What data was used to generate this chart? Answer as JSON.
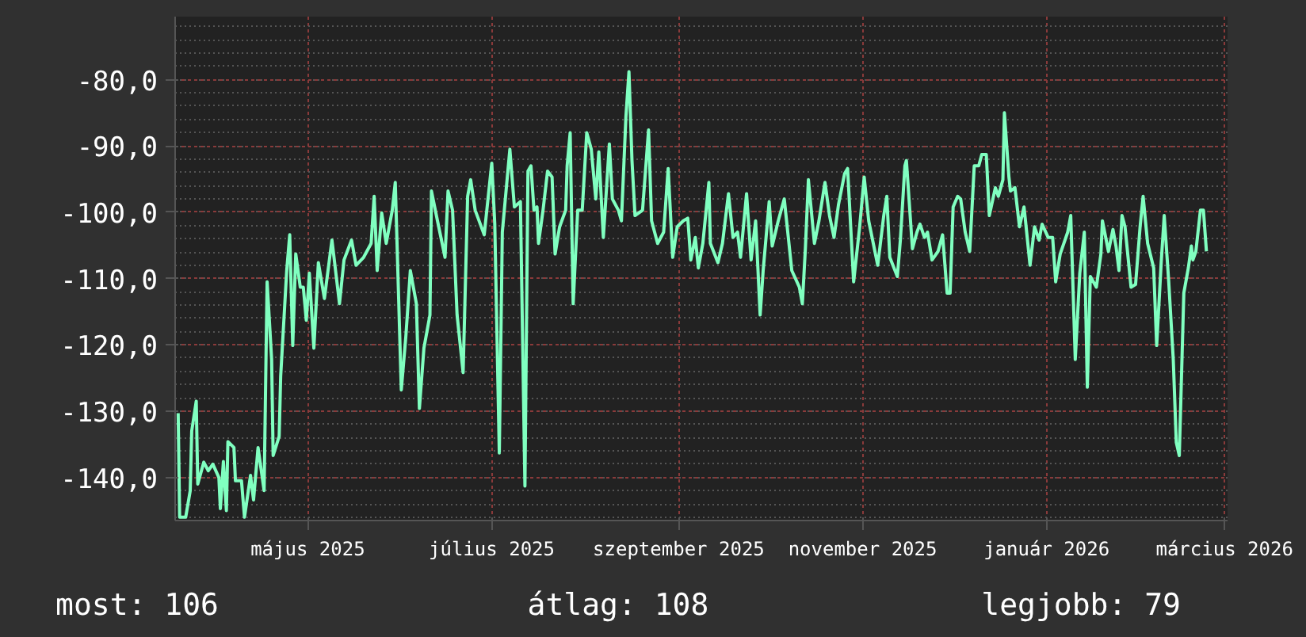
{
  "chart_data": {
    "type": "line",
    "line_style": "solid",
    "marker": "none",
    "grid": true,
    "xlim": [
      "2025-03-18",
      "2026-03-02"
    ],
    "xticks": [
      {
        "value": "2025-05-01",
        "label": "május 2025"
      },
      {
        "value": "2025-07-01",
        "label": "július 2025"
      },
      {
        "value": "2025-09-01",
        "label": "szeptember 2025"
      },
      {
        "value": "2025-11-01",
        "label": "november 2025"
      },
      {
        "value": "2026-01-01",
        "label": "január 2026"
      },
      {
        "value": "2026-03-01",
        "label": "március 2026"
      }
    ],
    "ylim": [
      -146.5,
      -70.5
    ],
    "yticks": [
      {
        "value": -140,
        "label": "-140,0"
      },
      {
        "value": -130,
        "label": "-130,0"
      },
      {
        "value": -120,
        "label": "-120,0"
      },
      {
        "value": -110,
        "label": "-110,0"
      },
      {
        "value": -100,
        "label": "-100,0"
      },
      {
        "value": -90,
        "label": "-90,0"
      },
      {
        "value": -80,
        "label": "-80,0"
      }
    ],
    "annotations": [
      "most: 106",
      "átlag: 108",
      "legjobb: 79"
    ],
    "series": [
      {
        "color": "#80ffc0",
        "x": [
          "2025-03-19",
          "2025-03-19T12:00",
          "2025-03-21T12:00",
          "2025-03-23",
          "2025-03-23T12:00",
          "2025-03-25",
          "2025-03-25T12:00",
          "2025-03-27T12:00",
          "2025-03-29",
          "2025-03-30T12:00",
          "2025-04-01T12:00",
          "2025-04-02",
          "2025-04-03",
          "2025-04-04",
          "2025-04-04T12:00",
          "2025-04-06T12:00",
          "2025-04-07",
          "2025-04-09",
          "2025-04-10",
          "2025-04-12",
          "2025-04-13",
          "2025-04-14T12:00",
          "2025-04-16T12:00",
          "2025-04-17T12:00",
          "2025-04-19",
          "2025-04-19T12:00",
          "2025-04-21T12:00",
          "2025-04-22",
          "2025-04-24",
          "2025-04-25",
          "2025-04-26",
          "2025-04-27",
          "2025-04-28T12:00",
          "2025-04-29T12:00",
          "2025-04-30T12:00",
          "2025-05-01T12:00",
          "2025-05-03",
          "2025-05-04T12:00",
          "2025-05-06T12:00",
          "2025-05-09",
          "2025-05-11T12:00",
          "2025-05-13",
          "2025-05-15T12:00",
          "2025-05-17",
          "2025-05-19T12:00",
          "2025-05-22",
          "2025-05-23",
          "2025-05-24",
          "2025-05-25T12:00",
          "2025-05-27",
          "2025-05-29",
          "2025-05-30",
          "2025-06-01",
          "2025-06-02T12:00",
          "2025-06-04",
          "2025-06-06",
          "2025-06-07",
          "2025-06-08T12:00",
          "2025-06-10T12:00",
          "2025-06-11",
          "2025-06-13",
          "2025-06-15T12:00",
          "2025-06-16T12:00",
          "2025-06-18",
          "2025-06-19T12:00",
          "2025-06-21T12:00",
          "2025-06-23",
          "2025-06-24",
          "2025-06-25T12:00",
          "2025-06-28T12:00",
          "2025-07-01",
          "2025-07-02",
          "2025-07-03T12:00",
          "2025-07-04T12:00",
          "2025-07-07",
          "2025-07-08T12:00",
          "2025-07-10T12:00",
          "2025-07-12",
          "2025-07-13",
          "2025-07-14",
          "2025-07-15",
          "2025-07-16",
          "2025-07-16T12:00",
          "2025-07-18",
          "2025-07-19T12:00",
          "2025-07-21",
          "2025-07-22",
          "2025-07-23T12:00",
          "2025-07-25T12:00",
          "2025-07-26",
          "2025-07-27",
          "2025-07-28",
          "2025-07-29T12:00",
          "2025-07-31",
          "2025-08-01T12:00",
          "2025-08-03",
          "2025-08-04T12:00",
          "2025-08-05T12:00",
          "2025-08-07",
          "2025-08-09",
          "2025-08-10",
          "2025-08-12",
          "2025-08-13",
          "2025-08-14T12:00",
          "2025-08-15T12:00",
          "2025-08-16T12:00",
          "2025-08-17T12:00",
          "2025-08-20",
          "2025-08-22",
          "2025-08-23",
          "2025-08-25",
          "2025-08-27",
          "2025-08-28T12:00",
          "2025-08-30",
          "2025-08-31T12:00",
          "2025-09-02T12:00",
          "2025-09-04",
          "2025-09-05",
          "2025-09-06T12:00",
          "2025-09-07T12:00",
          "2025-09-09",
          "2025-09-11",
          "2025-09-11T12:00",
          "2025-09-14",
          "2025-09-15T12:00",
          "2025-09-17T12:00",
          "2025-09-19",
          "2025-09-20T12:00",
          "2025-09-21T12:00",
          "2025-09-23T12:00",
          "2025-09-25",
          "2025-09-26T12:00",
          "2025-09-28",
          "2025-09-29",
          "2025-10-01",
          "2025-10-02",
          "2025-10-04",
          "2025-10-06",
          "2025-10-08T12:00",
          "2025-10-11",
          "2025-10-12",
          "2025-10-13",
          "2025-10-14",
          "2025-10-16",
          "2025-10-17T12:00",
          "2025-10-19T12:00",
          "2025-10-21",
          "2025-10-22T12:00",
          "2025-10-24",
          "2025-10-26",
          "2025-10-27",
          "2025-10-29",
          "2025-10-31",
          "2025-11-01T12:00",
          "2025-11-03",
          "2025-11-06",
          "2025-11-08",
          "2025-11-09",
          "2025-11-10",
          "2025-11-12T12:00",
          "2025-11-13T12:00",
          "2025-11-15",
          "2025-11-15T12:00",
          "2025-11-17T12:00",
          "2025-11-19",
          "2025-11-20",
          "2025-11-21T12:00",
          "2025-11-22T12:00",
          "2025-11-24",
          "2025-11-26",
          "2025-11-27T12:00",
          "2025-11-29",
          "2025-11-30",
          "2025-12-01",
          "2025-12-02T12:00",
          "2025-12-03T12:00",
          "2025-12-05",
          "2025-12-06T12:00",
          "2025-12-08",
          "2025-12-09T12:00",
          "2025-12-10T12:00",
          "2025-12-12",
          "2025-12-13",
          "2025-12-15",
          "2025-12-16",
          "2025-12-17T12:00",
          "2025-12-18",
          "2025-12-19T12:00",
          "2025-12-20",
          "2025-12-21T12:00",
          "2025-12-23",
          "2025-12-24T12:00",
          "2025-12-25",
          "2025-12-26T12:00",
          "2025-12-28",
          "2025-12-29T12:00",
          "2025-12-30T12:00",
          "2026-01-01T12:00",
          "2026-01-03",
          "2026-01-04",
          "2026-01-05T12:00",
          "2026-01-08",
          "2026-01-09",
          "2026-01-10T12:00",
          "2026-01-12",
          "2026-01-13T12:00",
          "2026-01-14T12:00",
          "2026-01-15T12:00",
          "2026-01-17T12:00",
          "2026-01-19",
          "2026-01-19T12:00",
          "2026-01-21T12:00",
          "2026-01-23",
          "2026-01-24",
          "2026-01-25",
          "2026-01-26",
          "2026-01-27",
          "2026-01-29",
          "2026-01-30T12:00",
          "2026-02-01",
          "2026-02-02",
          "2026-02-03T12:00",
          "2026-02-05T12:00",
          "2026-02-06T12:00",
          "2026-02-08",
          "2026-02-09",
          "2026-02-10T12:00",
          "2026-02-12",
          "2026-02-13",
          "2026-02-14",
          "2026-02-15T12:00",
          "2026-02-17",
          "2026-02-18",
          "2026-02-18T12:00",
          "2026-02-19T12:00",
          "2026-02-21",
          "2026-02-22",
          "2026-02-23"
        ],
        "values": [
          -130.3,
          -146,
          -146,
          -142,
          -133,
          -128.5,
          -141,
          -137.7,
          -139,
          -138,
          -140,
          -144.7,
          -137.6,
          -145,
          -134.6,
          -135.5,
          -140.5,
          -140.5,
          -146,
          -139.7,
          -143.4,
          -135.5,
          -142,
          -110.5,
          -122.2,
          -136.7,
          -133.8,
          -124.7,
          -108.8,
          -103.4,
          -120.1,
          -106.3,
          -111.3,
          -111.3,
          -116.3,
          -109.2,
          -120.5,
          -107.6,
          -113,
          -104.2,
          -113.8,
          -107.2,
          -104.2,
          -108,
          -106.8,
          -104.7,
          -97.6,
          -108.8,
          -100.1,
          -104.7,
          -99.7,
          -95.5,
          -126.8,
          -118.8,
          -108.8,
          -113.8,
          -129.6,
          -120.5,
          -115.5,
          -96.8,
          -101.3,
          -106.8,
          -96.8,
          -99.7,
          -115.5,
          -124.2,
          -97.6,
          -95.1,
          -99.7,
          -103.4,
          -92.6,
          -101.8,
          -136.3,
          -103,
          -90.5,
          -99.2,
          -98.4,
          -141.3,
          -93.8,
          -93,
          -99.7,
          -99.2,
          -104.7,
          -99.7,
          -93.8,
          -94.7,
          -106.3,
          -102.2,
          -99.7,
          -93,
          -88,
          -113.8,
          -99.7,
          -99.7,
          -88,
          -90.5,
          -98,
          -90.9,
          -103.8,
          -89.7,
          -98,
          -99.7,
          -101.3,
          -85.5,
          -78.8,
          -92.2,
          -100.5,
          -99.7,
          -87.6,
          -101.3,
          -104.7,
          -103,
          -93.4,
          -106.8,
          -102.2,
          -101.3,
          -100.9,
          -107.2,
          -103.8,
          -108.4,
          -104.7,
          -95.5,
          -104.7,
          -107.6,
          -104.7,
          -97.2,
          -103.8,
          -103,
          -106.8,
          -97.2,
          -107.2,
          -101.3,
          -115.5,
          -108.8,
          -98.4,
          -105.1,
          -101.3,
          -98,
          -108.8,
          -111.3,
          -113.8,
          -105.5,
          -95.1,
          -104.7,
          -101.3,
          -95.5,
          -100.5,
          -103.8,
          -98.8,
          -94.2,
          -93.4,
          -110.5,
          -102.2,
          -94.7,
          -101.3,
          -108,
          -100.5,
          -97.6,
          -106.8,
          -109.7,
          -104.2,
          -93,
          -92.2,
          -105.5,
          -103,
          -101.8,
          -103.8,
          -103,
          -107.2,
          -105.9,
          -103.4,
          -112.2,
          -112.2,
          -99.2,
          -97.6,
          -98,
          -103,
          -105.9,
          -93,
          -93,
          -91.3,
          -91.3,
          -100.5,
          -96.3,
          -97.6,
          -95.1,
          -85,
          -94.7,
          -96.8,
          -96.3,
          -102.2,
          -99.2,
          -101.3,
          -108,
          -102.2,
          -104.2,
          -101.8,
          -103.8,
          -103.8,
          -110.5,
          -106.3,
          -103,
          -100.5,
          -122.2,
          -109.2,
          -103,
          -126.4,
          -109.7,
          -111.3,
          -106.3,
          -101.3,
          -105.9,
          -102.6,
          -105.1,
          -108.8,
          -100.5,
          -102.2,
          -111.3,
          -110.9,
          -102.2,
          -97.6,
          -104.7,
          -108.4,
          -120.1,
          -107.6,
          -100.5,
          -110.5,
          -122.2,
          -134.7,
          -136.7,
          -112.2,
          -108.4,
          -105.1,
          -107.2,
          -105.9,
          -99.7,
          -99.7,
          -105.9
        ]
      }
    ]
  }
}
